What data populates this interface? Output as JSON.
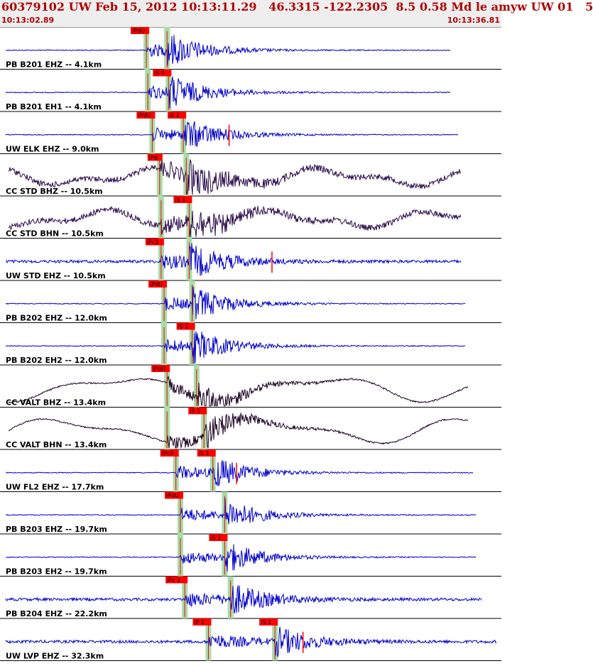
{
  "header": {
    "title": "60379102 UW Feb 15, 2012 10:13:11.29   46.3315 -122.2305  8.5 0.58 Md le amyw UW 01   5",
    "start_time": "10:13:02.89",
    "end_time": "10:13:36.81"
  },
  "colors": {
    "trace_blue": "#0000cc",
    "trace_purple": "#2a0a4a",
    "trace_black": "#1a0020",
    "pick_red": "#ff0000",
    "window_green": "#a8dca8",
    "header_red": "#b00000"
  },
  "chart_data": {
    "type": "seismogram",
    "x_range_seconds": [
      0,
      33.92
    ],
    "traces": [
      {
        "label": "PB B201 EHZ -- 4.1km",
        "color": "blue",
        "style": "quiet",
        "p": 9.9,
        "s": 11.3,
        "p_label": "iPdU",
        "s_label": "",
        "end": 30.5
      },
      {
        "label": "PB B201 EH1 -- 4.1km",
        "color": "blue",
        "style": "quiet",
        "p": 10.0,
        "s": 11.4,
        "p_label": "",
        "s_label": "iS 0",
        "end": 30.5
      },
      {
        "label": "UW ELK EHZ -- 9.0km",
        "color": "blue",
        "style": "quiet",
        "p": 10.3,
        "s": 12.4,
        "p_label": "iPdU",
        "s_label": "iS 1",
        "end": 31.0,
        "coda_end": 15.5
      },
      {
        "label": "CC STD BHZ -- 10.5km",
        "color": "purple",
        "style": "noisy",
        "p": 10.8,
        "s": 12.6,
        "p_label": "iPd",
        "s_label": "",
        "end": 31.2
      },
      {
        "label": "CC STD BHN -- 10.5km",
        "color": "purple",
        "style": "noisy",
        "p": 10.9,
        "s": 12.8,
        "p_label": "",
        "s_label": "iS 1",
        "end": 31.2
      },
      {
        "label": "UW STD EHZ -- 10.5km",
        "color": "blue",
        "style": "medium",
        "p": 10.9,
        "s": 12.8,
        "p_label": "iPc1",
        "s_label": "",
        "end": 31.2,
        "coda_end": 18.4
      },
      {
        "label": "PB B202 EHZ -- 12.0km",
        "color": "blue",
        "style": "quiet",
        "p": 11.1,
        "s": 13.0,
        "p_label": "iPdU",
        "s_label": "",
        "end": 31.5
      },
      {
        "label": "PB B202 EH2 -- 12.0km",
        "color": "blue",
        "style": "quiet",
        "p": 11.1,
        "s": 13.0,
        "p_label": "",
        "s_label": "iS 1",
        "end": 31.5
      },
      {
        "label": "CC VALT BHZ -- 13.4km",
        "color": "black",
        "style": "wavy",
        "p": 11.3,
        "s": 13.3,
        "p_label": "iPdU",
        "s_label": "",
        "end": 31.7
      },
      {
        "label": "CC VALT BHN -- 13.4km",
        "color": "black",
        "style": "wavy",
        "p": 11.3,
        "s": 13.8,
        "p_label": "",
        "s_label": "iS 1",
        "end": 31.7
      },
      {
        "label": "UW FL2 EHZ -- 17.7km",
        "color": "blue",
        "style": "quiet",
        "p": 11.9,
        "s": 14.4,
        "p_label": "iPc0",
        "s_label": "iS 1",
        "end": 32.0,
        "coda_end": 16.0
      },
      {
        "label": "PB B203 EHZ -- 19.7km",
        "color": "blue",
        "style": "quiet",
        "p": 12.2,
        "s": 15.2,
        "p_label": "iPdU",
        "s_label": "",
        "end": 32.2
      },
      {
        "label": "PB B203 EH2 -- 19.7km",
        "color": "blue",
        "style": "quiet",
        "p": 12.2,
        "s": 15.2,
        "p_label": "",
        "s_label": "iS 1",
        "end": 32.2
      },
      {
        "label": "PB B204 EHZ -- 22.2km",
        "color": "blue",
        "style": "medium",
        "p": 12.5,
        "s": 15.6,
        "p_label": "iPc 1",
        "s_label": "",
        "end": 32.6
      },
      {
        "label": "UW LVP EHZ -- 32.3km",
        "color": "blue",
        "style": "medium",
        "p": 14.1,
        "s": 18.6,
        "p_label": "iP 1",
        "s_label": "iS 1",
        "end": 33.6,
        "coda_end": 20.5
      }
    ]
  }
}
